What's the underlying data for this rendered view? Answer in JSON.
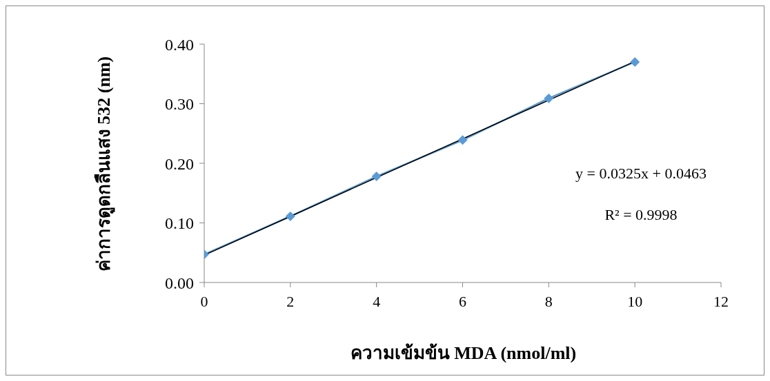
{
  "chart_data": {
    "type": "line",
    "xlabel": "ความเข้มข้น MDA (nmol/ml)",
    "ylabel": "ค่าการดูดกลืนแสง 532 (nm)",
    "x": [
      0,
      2,
      4,
      6,
      8,
      10
    ],
    "series": [
      {
        "color": "#5b9bd5",
        "marker": "diamond",
        "values": [
          0.047,
          0.111,
          0.178,
          0.239,
          0.309,
          0.37
        ]
      },
      {
        "color": "#000000",
        "marker": "none",
        "x": [
          0,
          10
        ],
        "values": [
          0.046,
          0.371
        ]
      }
    ],
    "xlim": [
      0,
      12
    ],
    "xticks": [
      0,
      2,
      4,
      6,
      8,
      10,
      12
    ],
    "ylim": [
      0,
      0.4
    ],
    "yticks": [
      {
        "value": 0,
        "label": "0.00"
      },
      {
        "value": 0.1,
        "label": "0.10"
      },
      {
        "value": 0.2,
        "label": "0.20"
      },
      {
        "value": 0.3,
        "label": "0.30"
      },
      {
        "value": 0.4,
        "label": "0.40"
      }
    ],
    "grid": false,
    "annotations": [
      "y = 0.0325x + 0.0463",
      "R² = 0.9998"
    ]
  }
}
